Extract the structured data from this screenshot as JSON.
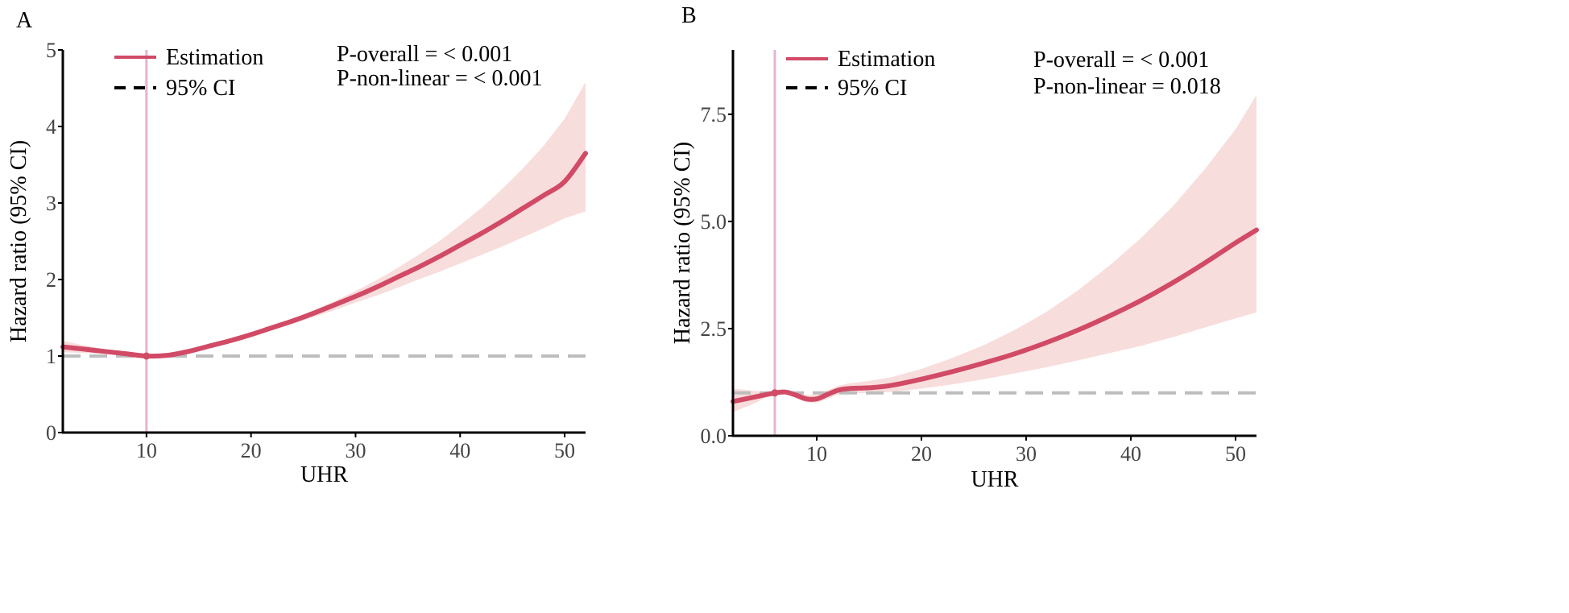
{
  "colors": {
    "estimate": "#d14a66",
    "ci_band": "#f4c6c6",
    "reference_line": "#bdbdbd",
    "marker_line": "#e6b3d3",
    "axis": "#000000",
    "tick_text": "#444444"
  },
  "chart_data": [
    {
      "panel": "A",
      "type": "line",
      "xlabel": "UHR",
      "ylabel": "Hazard ratio (95% CI)",
      "xlim": [
        2,
        52
      ],
      "ylim": [
        0,
        5
      ],
      "xticks": [
        10,
        20,
        30,
        40,
        50
      ],
      "yticks": [
        0,
        1,
        2,
        3,
        4,
        5
      ],
      "ytick_labels": [
        "0",
        "1",
        "2",
        "3",
        "4",
        "5"
      ],
      "reference_y": 1,
      "marker_x": 10,
      "legend": {
        "estimate": "Estimation",
        "ci": "95% CI"
      },
      "stats": [
        "P-overall = < 0.001",
        "P-non-linear = < 0.001"
      ],
      "series": [
        {
          "name": "Estimation",
          "x": [
            2,
            4,
            6,
            8,
            10,
            12,
            14,
            16,
            18,
            20,
            22,
            24,
            26,
            28,
            30,
            32,
            34,
            36,
            38,
            40,
            42,
            44,
            46,
            48,
            50,
            52
          ],
          "y": [
            1.12,
            1.09,
            1.06,
            1.03,
            1.0,
            1.01,
            1.06,
            1.13,
            1.2,
            1.28,
            1.37,
            1.46,
            1.56,
            1.67,
            1.78,
            1.9,
            2.03,
            2.16,
            2.3,
            2.45,
            2.6,
            2.76,
            2.93,
            3.1,
            3.28,
            3.65
          ]
        },
        {
          "name": "95% CI upper",
          "x": [
            2,
            4,
            6,
            8,
            10,
            12,
            14,
            16,
            18,
            20,
            22,
            24,
            26,
            28,
            30,
            32,
            34,
            36,
            38,
            40,
            42,
            44,
            46,
            48,
            50,
            52
          ],
          "y": [
            1.2,
            1.14,
            1.09,
            1.04,
            1.0,
            1.02,
            1.07,
            1.14,
            1.22,
            1.3,
            1.39,
            1.49,
            1.6,
            1.72,
            1.85,
            1.99,
            2.15,
            2.32,
            2.5,
            2.71,
            2.93,
            3.18,
            3.45,
            3.75,
            4.1,
            4.58
          ]
        },
        {
          "name": "95% CI lower",
          "x": [
            2,
            4,
            6,
            8,
            10,
            12,
            14,
            16,
            18,
            20,
            22,
            24,
            26,
            28,
            30,
            32,
            34,
            36,
            38,
            40,
            42,
            44,
            46,
            48,
            50,
            52
          ],
          "y": [
            1.05,
            1.04,
            1.03,
            1.02,
            1.0,
            1.0,
            1.05,
            1.12,
            1.19,
            1.26,
            1.34,
            1.42,
            1.51,
            1.6,
            1.7,
            1.79,
            1.89,
            2.0,
            2.1,
            2.21,
            2.32,
            2.43,
            2.55,
            2.67,
            2.8,
            2.89
          ]
        }
      ]
    },
    {
      "panel": "B",
      "type": "line",
      "xlabel": "UHR",
      "ylabel": "Hazard ratio (95% CI)",
      "xlim": [
        2,
        52
      ],
      "ylim": [
        0,
        9
      ],
      "xticks": [
        10,
        20,
        30,
        40,
        50
      ],
      "yticks": [
        0,
        2.5,
        5,
        7.5
      ],
      "ytick_labels": [
        "0.0",
        "2.5",
        "5.0",
        "7.5"
      ],
      "reference_y": 1,
      "marker_x": 6,
      "legend": {
        "estimate": "Estimation",
        "ci": "95% CI"
      },
      "stats": [
        "P-overall = < 0.001",
        "P-non-linear = 0.018"
      ],
      "series": [
        {
          "name": "Estimation",
          "x": [
            2,
            4,
            6,
            7,
            8,
            9,
            10,
            11,
            12,
            13,
            15,
            17,
            20,
            23,
            26,
            29,
            32,
            35,
            38,
            41,
            44,
            47,
            50,
            52
          ],
          "y": [
            0.8,
            0.9,
            1.0,
            1.02,
            0.95,
            0.86,
            0.86,
            0.96,
            1.06,
            1.1,
            1.12,
            1.17,
            1.32,
            1.5,
            1.7,
            1.92,
            2.18,
            2.47,
            2.8,
            3.16,
            3.57,
            4.02,
            4.5,
            4.8
          ]
        },
        {
          "name": "95% CI upper",
          "x": [
            2,
            4,
            6,
            7,
            8,
            9,
            10,
            11,
            12,
            13,
            15,
            17,
            20,
            23,
            26,
            29,
            32,
            35,
            38,
            41,
            44,
            47,
            50,
            52
          ],
          "y": [
            1.1,
            1.05,
            1.0,
            1.05,
            1.02,
            0.95,
            0.96,
            1.06,
            1.16,
            1.22,
            1.28,
            1.36,
            1.56,
            1.82,
            2.12,
            2.48,
            2.9,
            3.4,
            3.98,
            4.62,
            5.35,
            6.2,
            7.15,
            7.95
          ]
        },
        {
          "name": "95% CI lower",
          "x": [
            2,
            4,
            6,
            7,
            8,
            9,
            10,
            11,
            12,
            13,
            15,
            17,
            20,
            23,
            26,
            29,
            32,
            35,
            38,
            41,
            44,
            47,
            50,
            52
          ],
          "y": [
            0.55,
            0.75,
            1.0,
            0.98,
            0.88,
            0.78,
            0.77,
            0.86,
            0.96,
            0.99,
            1.0,
            1.02,
            1.1,
            1.2,
            1.32,
            1.46,
            1.6,
            1.76,
            1.93,
            2.1,
            2.3,
            2.52,
            2.74,
            2.88
          ]
        }
      ]
    }
  ]
}
